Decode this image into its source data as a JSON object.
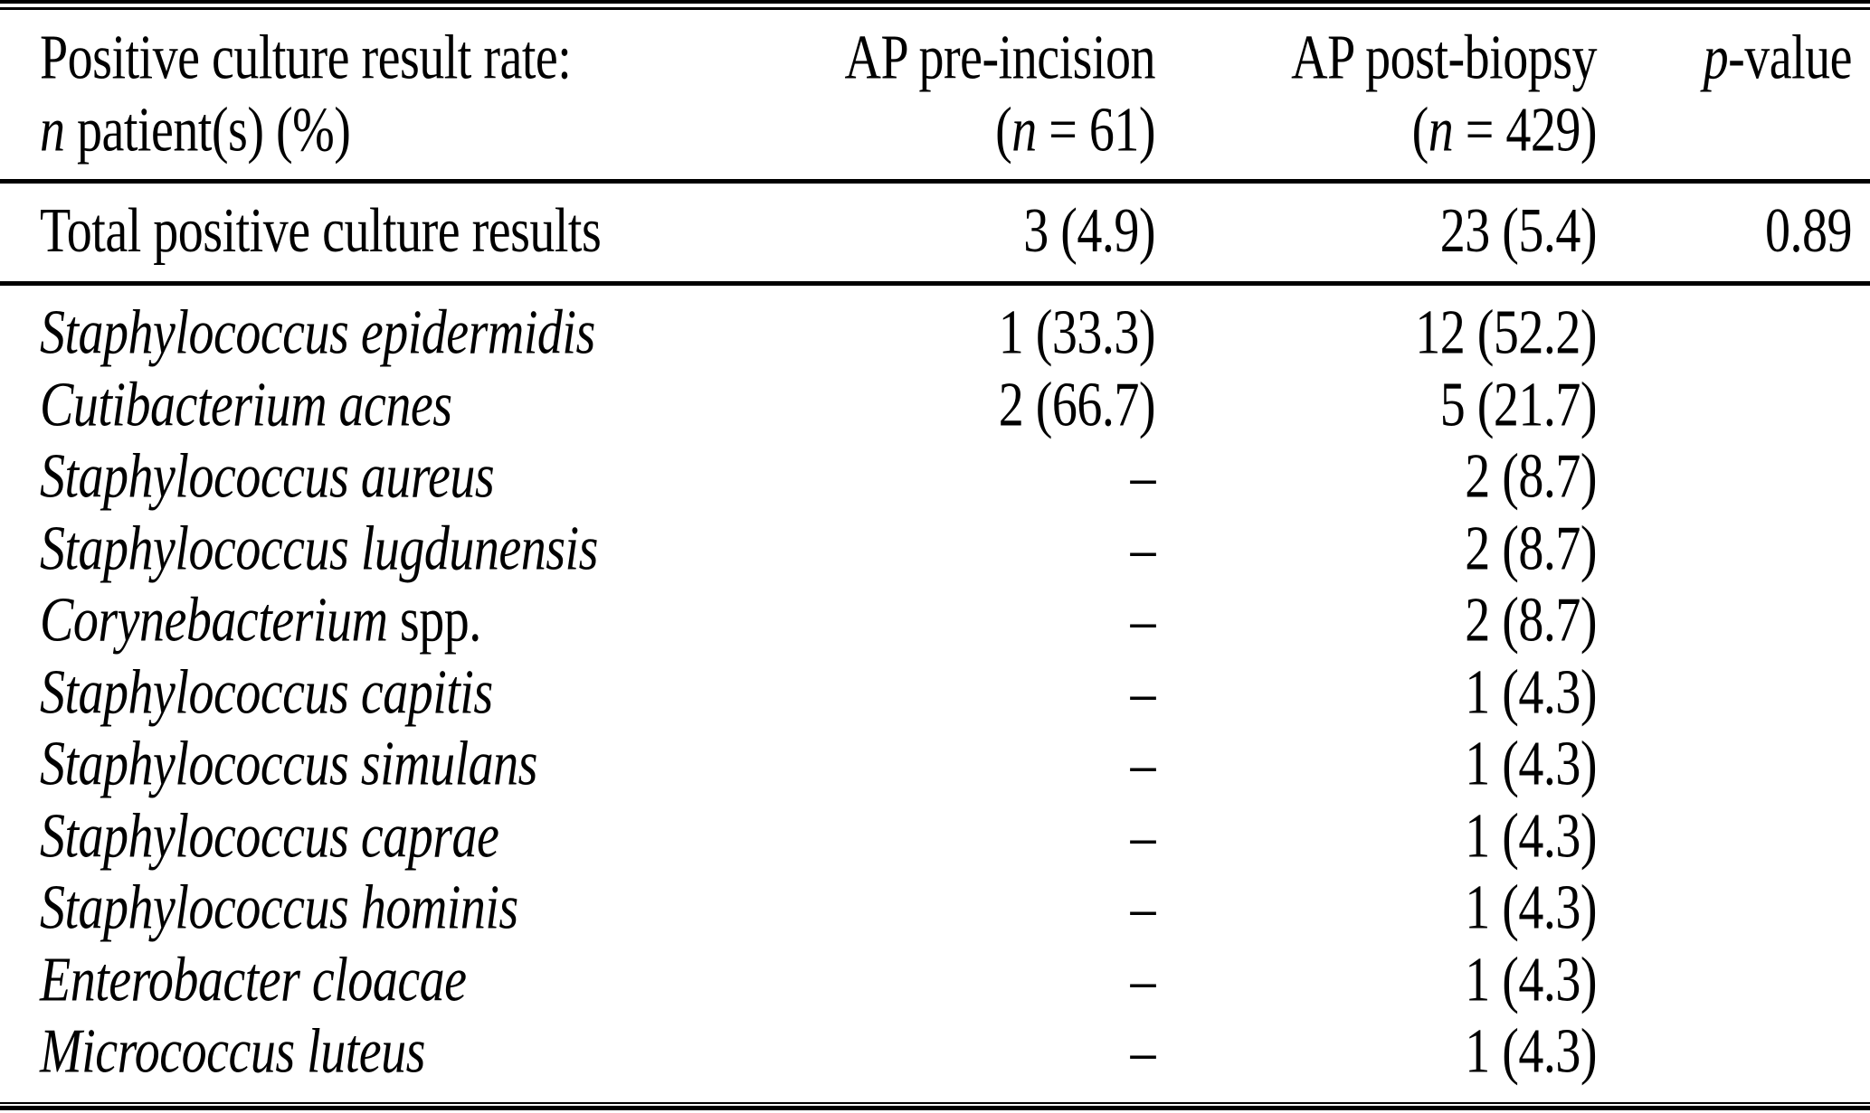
{
  "colors": {
    "background": "#ffffff",
    "text": "#000000",
    "rule": "#000000"
  },
  "table": {
    "header": {
      "col1": {
        "line1": "Positive culture result rate:",
        "line2_italic": "n",
        "line2_rest": " patient(s) (%)"
      },
      "col2": {
        "line1": "AP pre-incision",
        "line2_open": "(",
        "line2_italic": "n",
        "line2_rest": " = 61)"
      },
      "col3": {
        "line1": "AP post-biopsy",
        "line2_open": "(",
        "line2_italic": "n",
        "line2_rest": " = 429)"
      },
      "col4": {
        "line1_italic": "p",
        "line1_rest": "-value"
      }
    },
    "total_row": {
      "label": "Total positive culture results",
      "pre": "3 (4.9)",
      "post": "23 (5.4)",
      "p": "0.89"
    },
    "rows": [
      {
        "name": "Staphylococcus epidermidis",
        "suffix": "",
        "pre": "1 (33.3)",
        "post": "12 (52.2)",
        "p": ""
      },
      {
        "name": "Cutibacterium acnes",
        "suffix": "",
        "pre": "2 (66.7)",
        "post": "5 (21.7)",
        "p": ""
      },
      {
        "name": "Staphylococcus aureus",
        "suffix": "",
        "pre": "–",
        "post": "2 (8.7)",
        "p": ""
      },
      {
        "name": "Staphylococcus lugdunensis",
        "suffix": "",
        "pre": "–",
        "post": "2 (8.7)",
        "p": ""
      },
      {
        "name": "Corynebacterium",
        "suffix": " spp.",
        "pre": "–",
        "post": "2 (8.7)",
        "p": ""
      },
      {
        "name": "Staphylococcus capitis",
        "suffix": "",
        "pre": "–",
        "post": "1 (4.3)",
        "p": ""
      },
      {
        "name": "Staphylococcus simulans",
        "suffix": "",
        "pre": "–",
        "post": "1 (4.3)",
        "p": ""
      },
      {
        "name": "Staphylococcus caprae",
        "suffix": "",
        "pre": "–",
        "post": "1 (4.3)",
        "p": ""
      },
      {
        "name": "Staphylococcus hominis",
        "suffix": "",
        "pre": "–",
        "post": "1 (4.3)",
        "p": ""
      },
      {
        "name": "Enterobacter cloacae",
        "suffix": "",
        "pre": "–",
        "post": "1 (4.3)",
        "p": ""
      },
      {
        "name": "Micrococcus luteus",
        "suffix": "",
        "pre": "–",
        "post": "1 (4.3)",
        "p": ""
      }
    ]
  }
}
